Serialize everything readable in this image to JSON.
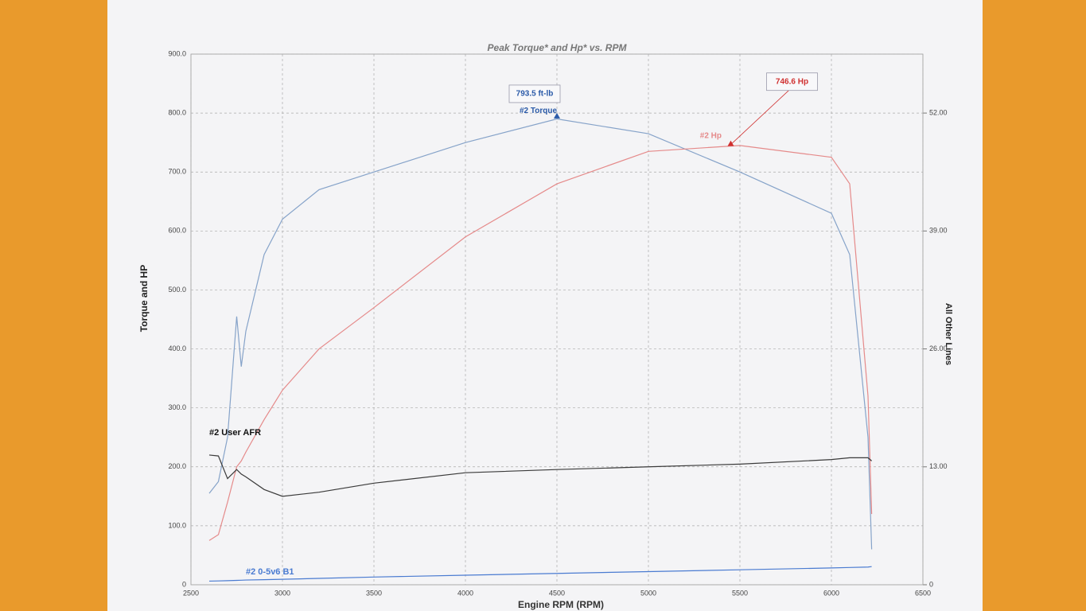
{
  "chart_data": {
    "type": "line",
    "title": "Peak Torque* and Hp* vs. RPM",
    "x_label": "Engine RPM (RPM)",
    "y_label": "Torque and HP",
    "y2_label": "All Other Lines",
    "x": [
      2600,
      2650,
      2700,
      2750,
      2775,
      2800,
      2900,
      3000,
      3200,
      3500,
      4000,
      4500,
      5000,
      5500,
      6000,
      6100,
      6200,
      6220
    ],
    "series": [
      {
        "name": "#2 Torque",
        "color": "#86a3c9",
        "values": [
          155,
          175,
          250,
          455,
          370,
          430,
          560,
          620,
          670,
          700,
          750,
          790,
          765,
          700,
          630,
          560,
          250,
          60
        ]
      },
      {
        "name": "#2 Hp",
        "color": "#e58a8a",
        "values": [
          75,
          85,
          140,
          200,
          210,
          225,
          280,
          330,
          400,
          470,
          590,
          680,
          735,
          745,
          725,
          680,
          320,
          120
        ]
      },
      {
        "name": "#2 User AFR",
        "color": "#3a3a3a",
        "axis": "y2",
        "values": [
          14.3,
          14.2,
          11.7,
          12.7,
          12.2,
          11.9,
          10.5,
          9.75,
          10.2,
          11.2,
          12.35,
          12.7,
          13.0,
          13.3,
          13.8,
          14.0,
          14.0,
          13.65
        ]
      },
      {
        "name": "#2 0-5v6 B1",
        "color": "#4a7bd1",
        "axis": "y2",
        "values": [
          0.4,
          0.42,
          0.45,
          0.48,
          0.5,
          0.52,
          0.56,
          0.6,
          0.7,
          0.85,
          1.05,
          1.25,
          1.45,
          1.65,
          1.85,
          1.9,
          1.95,
          2.0
        ]
      }
    ],
    "annotations": [
      {
        "label": "793.5 ft-lb",
        "x": 4500,
        "y": 793.5,
        "color": "#2a5aa8"
      },
      {
        "label": "746.6 Hp",
        "x": 5450,
        "y": 746.6,
        "color": "#d03030"
      }
    ],
    "xlim": [
      2500,
      6500
    ],
    "xticks": [
      2500,
      3000,
      3500,
      4000,
      4500,
      5000,
      5500,
      6000,
      6500
    ],
    "ylim": [
      0,
      900
    ],
    "yticks": [
      0,
      {
        "value": 100,
        "label": "100.0"
      },
      {
        "value": 200,
        "label": "200.0"
      },
      {
        "value": 300,
        "label": "300.0"
      },
      {
        "value": 400,
        "label": "400.0"
      },
      {
        "value": 500,
        "label": "500.0"
      },
      {
        "value": 600,
        "label": "600.0"
      },
      {
        "value": 700,
        "label": "700.0"
      },
      {
        "value": 800,
        "label": "800.0"
      },
      {
        "value": 900,
        "label": "900.0"
      }
    ],
    "y2lim": [
      0,
      58.5
    ],
    "y2ticks": [
      0,
      {
        "value": 13,
        "label": "13.00"
      },
      {
        "value": 26,
        "label": "26.00"
      },
      {
        "value": 39,
        "label": "39.00"
      },
      {
        "value": 52,
        "label": "52.00"
      }
    ],
    "grid": true
  }
}
